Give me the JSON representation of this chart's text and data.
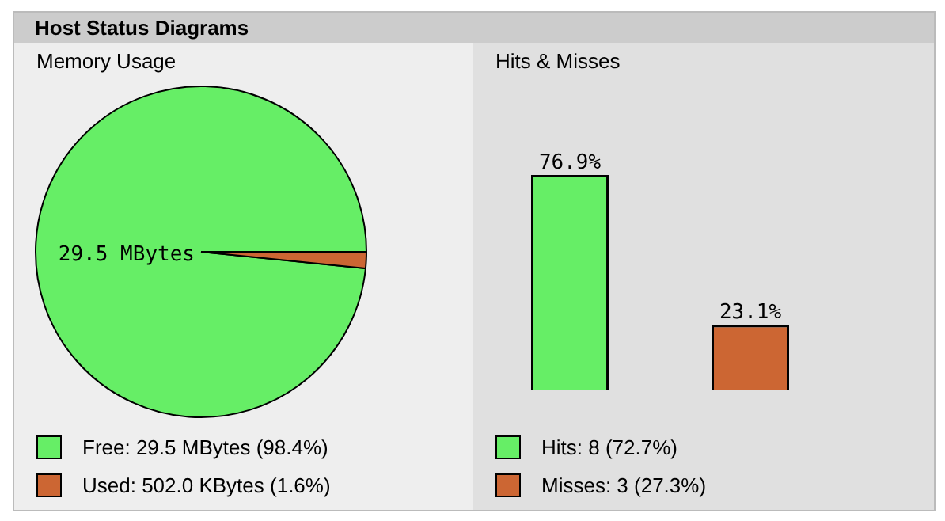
{
  "chart_data": [
    {
      "type": "pie",
      "title": "Memory Usage",
      "annotations": [
        "Host Status Diagrams",
        "29.5 MBytes"
      ],
      "legend": "bottom",
      "categories": [
        "Free: 29.5 MBytes (98.4%)",
        "Used: 502.0 KBytes (1.6%)"
      ],
      "values": [
        98.4,
        1.6
      ],
      "colors": [
        "#66ee66",
        "#cc6633"
      ]
    },
    {
      "type": "bar",
      "title": "Hits & Misses",
      "tick_labels": false,
      "categories": [
        null,
        null
      ],
      "annotations": [
        "Hits: 8 (72.7%)",
        "Misses: 3 (27.3%)"
      ],
      "values": [
        76.9,
        23.1
      ],
      "value_labels": [
        "76.9%",
        "23.1%"
      ],
      "colors": [
        "#66ee66",
        "#cc6633"
      ]
    }
  ]
}
